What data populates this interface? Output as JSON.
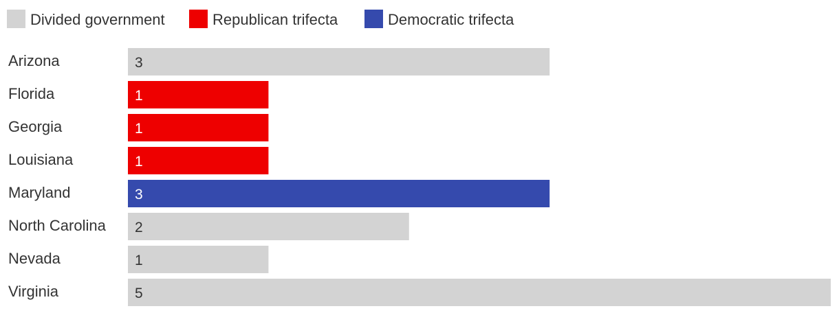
{
  "chart_data": {
    "type": "bar",
    "orientation": "horizontal",
    "legend_position": "top-left",
    "legend": [
      {
        "key": "divided",
        "label": "Divided government",
        "color": "#d3d3d3"
      },
      {
        "key": "republican",
        "label": "Republican trifecta",
        "color": "#ee0000"
      },
      {
        "key": "democratic",
        "label": "Democratic trifecta",
        "color": "#354aad"
      }
    ],
    "categories": [
      "Arizona",
      "Florida",
      "Georgia",
      "Louisiana",
      "Maryland",
      "North Carolina",
      "Nevada",
      "Virginia"
    ],
    "values": [
      3,
      1,
      1,
      1,
      3,
      2,
      1,
      5
    ],
    "groups": [
      "divided",
      "republican",
      "republican",
      "republican",
      "democratic",
      "divided",
      "divided",
      "divided"
    ],
    "xlim": [
      0,
      5
    ],
    "grid": false,
    "label_colors": {
      "divided": "#333333",
      "republican": "#ffffff",
      "democratic": "#ffffff"
    }
  }
}
